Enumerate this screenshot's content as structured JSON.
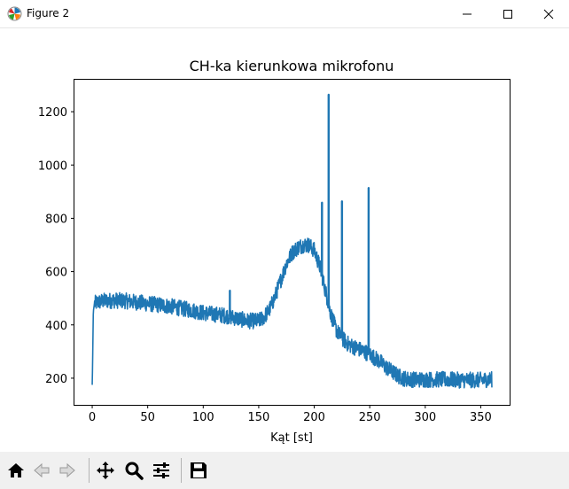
{
  "window": {
    "title": "Figure 2",
    "icon": "matplotlib-logo-icon",
    "controls": [
      "minimize-icon",
      "maximize-icon",
      "close-icon"
    ]
  },
  "toolbar": {
    "buttons": [
      {
        "name": "home-button",
        "icon": "home-icon"
      },
      {
        "name": "back-button",
        "icon": "arrow-left-icon"
      },
      {
        "name": "forward-button",
        "icon": "arrow-right-icon"
      },
      {
        "name": "pan-button",
        "icon": "move-icon"
      },
      {
        "name": "zoom-button",
        "icon": "magnifier-icon"
      },
      {
        "name": "subplots-button",
        "icon": "sliders-icon"
      },
      {
        "name": "save-button",
        "icon": "floppy-disk-icon"
      }
    ]
  },
  "chart_data": {
    "type": "line",
    "title": "CH-ka kierunkowa mikrofonu",
    "xlabel": "Kąt [st]",
    "ylabel": "",
    "xlim": [
      -16,
      376
    ],
    "ylim": [
      100,
      1320
    ],
    "xticks": [
      0,
      50,
      100,
      150,
      200,
      250,
      300,
      350
    ],
    "yticks": [
      200,
      400,
      600,
      800,
      1000,
      1200
    ],
    "grid": false,
    "color": "#1f77b4",
    "series": [
      {
        "x": [
          0,
          0.3,
          1,
          2,
          5,
          10,
          20,
          30,
          40,
          50,
          60,
          70,
          80,
          90,
          100,
          110,
          120,
          125,
          130,
          140,
          150,
          155,
          160,
          165,
          170,
          175,
          180,
          185,
          190,
          195,
          200,
          205,
          210,
          215,
          220,
          225,
          230,
          235,
          240,
          245,
          250,
          255,
          260,
          265,
          270,
          275,
          280,
          285,
          290,
          300,
          310,
          320,
          330,
          340,
          350,
          355,
          360
        ],
        "y": [
          175,
          240,
          450,
          480,
          485,
          490,
          492,
          490,
          485,
          480,
          475,
          470,
          462,
          455,
          445,
          440,
          435,
          430,
          425,
          415,
          415,
          430,
          460,
          510,
          570,
          630,
          670,
          690,
          700,
          700,
          680,
          620,
          530,
          440,
          380,
          350,
          330,
          318,
          310,
          300,
          290,
          275,
          260,
          240,
          225,
          210,
          200,
          196,
          195,
          195,
          195,
          195,
          193,
          193,
          193,
          195,
          195
        ]
      }
    ],
    "spikes": [
      {
        "x": 207,
        "y": 860
      },
      {
        "x": 213,
        "y": 1265
      },
      {
        "x": 225,
        "y": 865
      },
      {
        "x": 249,
        "y": 915
      },
      {
        "x": 124,
        "y": 530
      }
    ],
    "noise_amplitude": 30
  }
}
